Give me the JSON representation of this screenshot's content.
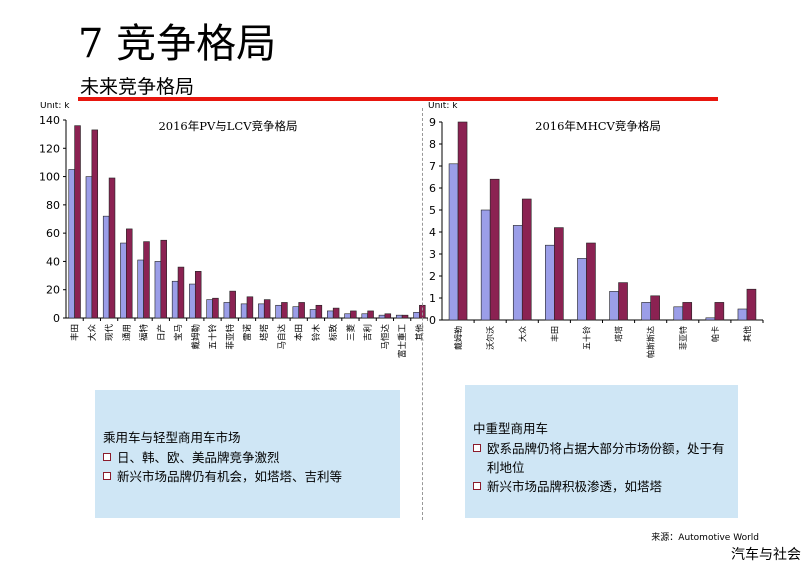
{
  "slide": {
    "title": "7 竞争格局",
    "subtitle": "未来竞争格局",
    "source": "来源：Automotive World",
    "watermark": "汽车与社会",
    "rule_color": "#e8160e"
  },
  "colors": {
    "series_2015": "#9b9ee8",
    "series_2016": "#8b2252",
    "box_background": "#cfe6f5"
  },
  "chart_data": [
    {
      "type": "bar",
      "title": "2016年PV与LCV竞争格局",
      "unit_label": "Unit: k",
      "ylim": [
        0,
        140
      ],
      "yticks": [
        0,
        20,
        40,
        60,
        80,
        100,
        120,
        140
      ],
      "grid": false,
      "legend": "none",
      "categories": [
        "丰田",
        "大众",
        "现代",
        "通用",
        "福特",
        "日产",
        "宝马",
        "戴姆勒",
        "五十铃",
        "菲亚特",
        "雷诺",
        "塔塔",
        "马自达",
        "本田",
        "铃木",
        "标致",
        "三菱",
        "吉利",
        "马恒达",
        "富士重工",
        "其他"
      ],
      "series": [
        {
          "values": [
            105,
            100,
            72,
            53,
            41,
            40,
            26,
            24,
            13,
            11,
            10,
            10,
            9,
            8,
            6,
            5,
            3,
            3,
            2,
            2,
            4
          ]
        },
        {
          "values": [
            136,
            133,
            99,
            63,
            54,
            55,
            36,
            33,
            14,
            19,
            15,
            13,
            11,
            11,
            9,
            7,
            5,
            5,
            3,
            2,
            9
          ]
        }
      ]
    },
    {
      "type": "bar",
      "title": "2016年MHCV竞争格局",
      "unit_label": "Unit: k",
      "ylim": [
        0,
        9
      ],
      "yticks": [
        0,
        1,
        2,
        3,
        4,
        5,
        6,
        7,
        8,
        9
      ],
      "grid": false,
      "legend": "none",
      "categories": [
        "戴姆勒",
        "沃尔沃",
        "大众",
        "丰田",
        "五十铃",
        "塔塔",
        "帕斯斯达",
        "菲亚特",
        "帕卡",
        "其他"
      ],
      "series": [
        {
          "values": [
            7.1,
            5.0,
            4.3,
            3.4,
            2.8,
            1.3,
            0.8,
            0.6,
            0.1,
            0.5
          ]
        },
        {
          "values": [
            9.0,
            6.4,
            5.5,
            4.2,
            3.5,
            1.7,
            1.1,
            0.8,
            0.8,
            1.4
          ]
        }
      ]
    }
  ],
  "boxes": [
    {
      "heading": "乘用车与轻型商用车市场",
      "bullets": [
        "日、韩、欧、美品牌竞争激烈",
        "新兴市场品牌仍有机会，如塔塔、吉利等"
      ]
    },
    {
      "heading": "中重型商用车",
      "bullets": [
        "欧系品牌仍将占据大部分市场份额，处于有利地位",
        "新兴市场品牌积极渗透，如塔塔"
      ]
    }
  ]
}
